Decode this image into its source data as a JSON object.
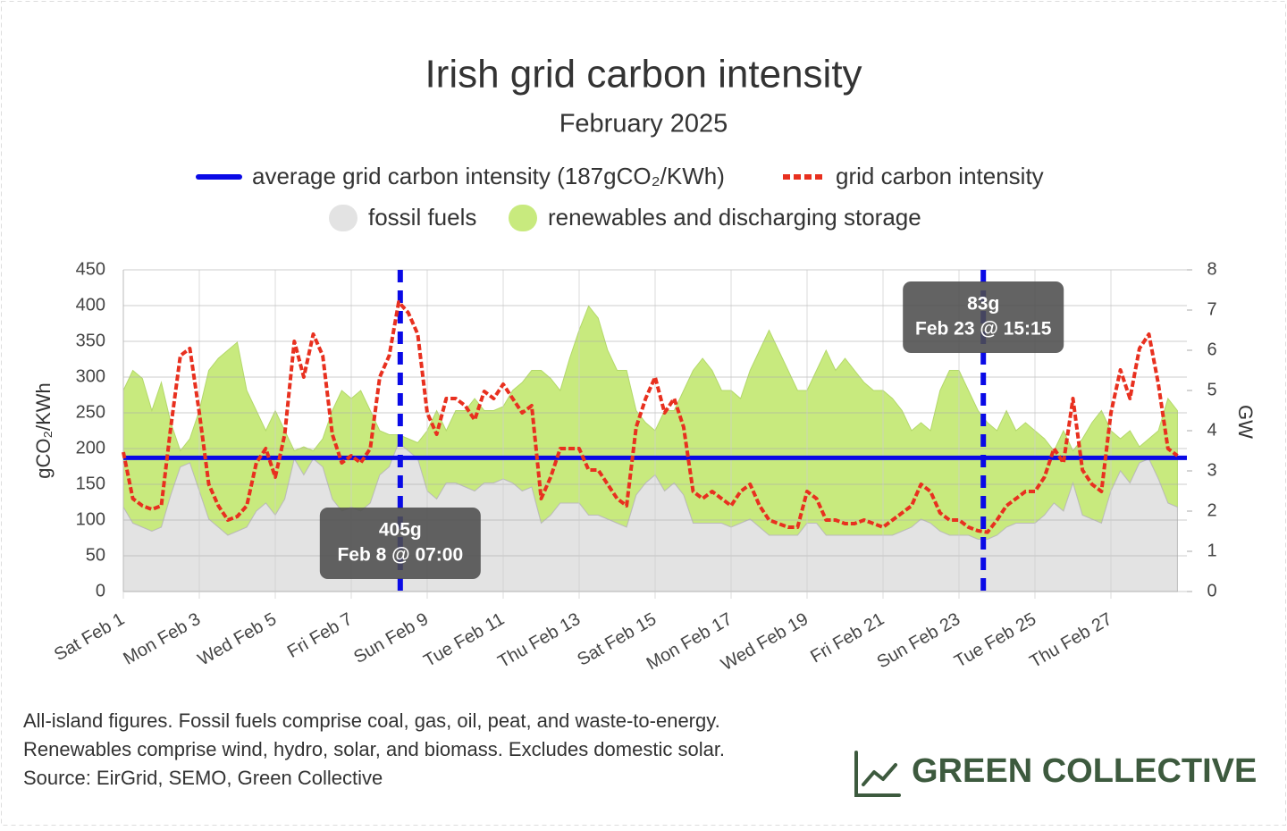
{
  "chart_data": {
    "type": "line",
    "title": "Irish grid carbon intensity",
    "subtitle": "February 2025",
    "ylabel": "gCO₂/KWh",
    "y2label": "GW",
    "xlim": [
      1,
      29
    ],
    "xticks": [
      {
        "value": 1,
        "label": "Sat Feb 1"
      },
      {
        "value": 3,
        "label": "Mon Feb 3"
      },
      {
        "value": 5,
        "label": "Wed Feb 5"
      },
      {
        "value": 7,
        "label": "Fri Feb 7"
      },
      {
        "value": 9,
        "label": "Sun Feb 9"
      },
      {
        "value": 11,
        "label": "Tue Feb 11"
      },
      {
        "value": 13,
        "label": "Thu Feb 13"
      },
      {
        "value": 15,
        "label": "Sat Feb 15"
      },
      {
        "value": 17,
        "label": "Mon Feb 17"
      },
      {
        "value": 19,
        "label": "Wed Feb 19"
      },
      {
        "value": 21,
        "label": "Fri Feb 21"
      },
      {
        "value": 23,
        "label": "Sun Feb 23"
      },
      {
        "value": 25,
        "label": "Tue Feb 25"
      },
      {
        "value": 27,
        "label": "Thu Feb 27"
      }
    ],
    "ylim": [
      0,
      450
    ],
    "yticks": [
      0,
      50,
      100,
      150,
      200,
      250,
      300,
      350,
      400,
      450
    ],
    "y2lim": [
      0,
      8
    ],
    "y2ticks": [
      0,
      1,
      2,
      3,
      4,
      5,
      6,
      7,
      8
    ],
    "grid": true,
    "x": [
      1,
      1.25,
      1.5,
      1.75,
      2,
      2.25,
      2.5,
      2.75,
      3,
      3.25,
      3.5,
      3.75,
      4,
      4.25,
      4.5,
      4.75,
      5,
      5.25,
      5.5,
      5.75,
      6,
      6.25,
      6.5,
      6.75,
      7,
      7.25,
      7.5,
      7.75,
      8,
      8.25,
      8.5,
      8.75,
      9,
      9.25,
      9.5,
      9.75,
      10,
      10.25,
      10.5,
      10.75,
      11,
      11.25,
      11.5,
      11.75,
      12,
      12.25,
      12.5,
      12.75,
      13,
      13.25,
      13.5,
      13.75,
      14,
      14.25,
      14.5,
      14.75,
      15,
      15.25,
      15.5,
      15.75,
      16,
      16.25,
      16.5,
      16.75,
      17,
      17.25,
      17.5,
      17.75,
      18,
      18.25,
      18.5,
      18.75,
      19,
      19.25,
      19.5,
      19.75,
      20,
      20.25,
      20.5,
      20.75,
      21,
      21.25,
      21.5,
      21.75,
      22,
      22.25,
      22.5,
      22.75,
      23,
      23.25,
      23.5,
      23.75,
      24,
      24.25,
      24.5,
      24.75,
      25,
      25.25,
      25.5,
      25.75,
      26,
      26.25,
      26.5,
      26.75,
      27,
      27.25,
      27.5,
      27.75,
      28,
      28.25,
      28.5,
      28.75
    ],
    "average": {
      "name": "average grid carbon intensity (187gCO₂/KWh)",
      "value": 187,
      "color": "#0a0ae6"
    },
    "series": [
      {
        "name": "grid carbon intensity",
        "color": "#e8301f",
        "values": [
          195,
          130,
          120,
          115,
          120,
          230,
          330,
          340,
          250,
          150,
          120,
          100,
          105,
          120,
          180,
          200,
          160,
          220,
          350,
          300,
          360,
          330,
          220,
          180,
          190,
          180,
          200,
          300,
          330,
          405,
          390,
          360,
          250,
          220,
          270,
          270,
          260,
          240,
          280,
          270,
          290,
          270,
          250,
          260,
          130,
          160,
          200,
          200,
          200,
          170,
          170,
          150,
          130,
          120,
          230,
          270,
          300,
          250,
          270,
          230,
          140,
          130,
          140,
          130,
          120,
          140,
          150,
          120,
          100,
          95,
          90,
          90,
          140,
          130,
          100,
          100,
          95,
          95,
          100,
          95,
          90,
          100,
          110,
          120,
          150,
          140,
          110,
          100,
          100,
          90,
          85,
          83,
          100,
          120,
          130,
          140,
          140,
          160,
          200,
          180,
          270,
          170,
          150,
          140,
          250,
          310,
          270,
          340,
          360,
          290,
          200,
          190
        ]
      },
      {
        "name": "fossil fuels",
        "color": "#e3e3e3",
        "axis": "y2",
        "values": [
          2.1,
          1.7,
          1.6,
          1.5,
          1.6,
          2.4,
          3.1,
          3.2,
          2.5,
          1.8,
          1.6,
          1.4,
          1.5,
          1.6,
          2.0,
          2.2,
          1.9,
          2.3,
          3.3,
          2.9,
          3.3,
          3.1,
          2.3,
          2.0,
          2.1,
          2.0,
          2.2,
          2.9,
          3.1,
          3.7,
          3.5,
          3.3,
          2.5,
          2.3,
          2.7,
          2.7,
          2.6,
          2.5,
          2.7,
          2.7,
          2.8,
          2.7,
          2.5,
          2.6,
          1.7,
          1.9,
          2.2,
          2.2,
          2.2,
          1.9,
          1.9,
          1.8,
          1.7,
          1.6,
          2.4,
          2.7,
          2.9,
          2.5,
          2.7,
          2.4,
          1.7,
          1.7,
          1.7,
          1.7,
          1.6,
          1.7,
          1.8,
          1.6,
          1.4,
          1.4,
          1.4,
          1.4,
          1.7,
          1.7,
          1.4,
          1.4,
          1.4,
          1.4,
          1.4,
          1.4,
          1.4,
          1.4,
          1.5,
          1.6,
          1.8,
          1.7,
          1.5,
          1.4,
          1.4,
          1.4,
          1.3,
          1.3,
          1.4,
          1.6,
          1.7,
          1.7,
          1.7,
          1.9,
          2.2,
          2.0,
          2.7,
          1.9,
          1.8,
          1.7,
          2.5,
          3.0,
          2.7,
          3.2,
          3.3,
          2.8,
          2.2,
          2.1
        ]
      },
      {
        "name": "renewables and discharging storage",
        "color": "#c8ea7e",
        "axis": "y2",
        "stacked": true,
        "values": [
          2.9,
          3.8,
          3.7,
          3.0,
          3.6,
          1.8,
          0.4,
          0.6,
          2.0,
          3.7,
          4.2,
          4.6,
          4.7,
          3.4,
          2.5,
          1.8,
          2.6,
          1.7,
          0.2,
          0.7,
          0.2,
          0.7,
          2.2,
          3.0,
          2.7,
          3.0,
          2.3,
          1.1,
          0.8,
          0.2,
          0.3,
          0.4,
          1.5,
          2.2,
          1.3,
          1.8,
          1.9,
          2.3,
          1.8,
          1.8,
          1.8,
          2.3,
          2.7,
          2.9,
          3.8,
          3.4,
          2.8,
          3.6,
          4.3,
          5.2,
          4.9,
          4.2,
          3.8,
          3.9,
          2.1,
          1.5,
          1.1,
          2.0,
          1.8,
          2.6,
          3.8,
          4.1,
          3.8,
          3.3,
          3.4,
          3.1,
          3.7,
          4.4,
          5.1,
          4.6,
          4.1,
          3.6,
          3.3,
          3.8,
          4.6,
          4.1,
          4.4,
          4.1,
          3.8,
          3.6,
          3.6,
          3.4,
          3.0,
          2.4,
          2.4,
          2.3,
          3.5,
          4.1,
          4.1,
          3.6,
          3.2,
          2.9,
          2.6,
          2.9,
          2.3,
          2.5,
          2.3,
          1.9,
          1.3,
          2.0,
          0.8,
          1.9,
          2.4,
          2.8,
          1.5,
          0.8,
          1.3,
          0.4,
          0.5,
          1.2,
          2.6,
          2.4
        ]
      }
    ],
    "annotations": [
      {
        "x": 8.29,
        "value": 405,
        "label": "405g",
        "date": "Feb 8 @ 07:00"
      },
      {
        "x": 23.64,
        "value": 83,
        "label": "83g",
        "date": "Feb 23 @ 15:15"
      }
    ]
  },
  "footnote": [
    "All-island figures. Fossil fuels comprise coal, gas, oil, peat, and waste-to-energy.",
    "Renewables comprise wind, hydro, solar, and biomass. Excludes domestic solar.",
    "Source: EirGrid, SEMO, Green Collective"
  ],
  "logo": "GREEN COLLECTIVE"
}
